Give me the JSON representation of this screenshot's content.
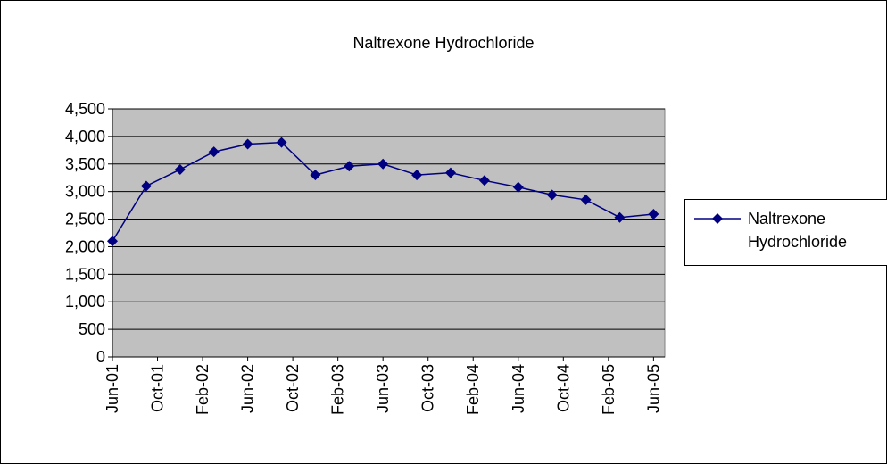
{
  "chart_data": {
    "type": "line",
    "title": "Naltrexone Hydrochloride",
    "x": [
      "2001-06",
      "2001-09",
      "2001-12",
      "2002-03",
      "2002-06",
      "2002-09",
      "2002-12",
      "2003-03",
      "2003-06",
      "2003-09",
      "2003-12",
      "2004-03",
      "2004-06",
      "2004-09",
      "2004-12",
      "2005-03",
      "2005-06"
    ],
    "series": [
      {
        "name": "Naltrexone Hydrochloride",
        "color": "#000080",
        "values": [
          2100,
          3100,
          3400,
          3720,
          3860,
          3890,
          3300,
          3460,
          3500,
          3300,
          3340,
          3200,
          3080,
          2940,
          2850,
          2530,
          2590
        ]
      }
    ],
    "xlim": [
      "2001-06",
      "2005-07"
    ],
    "xticks": [
      {
        "value": "2001-06",
        "label": "Jun-01"
      },
      {
        "value": "2001-10",
        "label": "Oct-01"
      },
      {
        "value": "2002-02",
        "label": "Feb-02"
      },
      {
        "value": "2002-06",
        "label": "Jun-02"
      },
      {
        "value": "2002-10",
        "label": "Oct-02"
      },
      {
        "value": "2003-02",
        "label": "Feb-03"
      },
      {
        "value": "2003-06",
        "label": "Jun-03"
      },
      {
        "value": "2003-10",
        "label": "Oct-03"
      },
      {
        "value": "2004-02",
        "label": "Feb-04"
      },
      {
        "value": "2004-06",
        "label": "Jun-04"
      },
      {
        "value": "2004-10",
        "label": "Oct-04"
      },
      {
        "value": "2005-02",
        "label": "Feb-05"
      },
      {
        "value": "2005-06",
        "label": "Jun-05"
      }
    ],
    "ylim": [
      0,
      4500
    ],
    "yticks": [
      0,
      500,
      {
        "value": 1000,
        "label": "1,000"
      },
      {
        "value": 1500,
        "label": "1,500"
      },
      {
        "value": 2000,
        "label": "2,000"
      },
      {
        "value": 2500,
        "label": "2,500"
      },
      {
        "value": 3000,
        "label": "3,000"
      },
      {
        "value": 3500,
        "label": "3,500"
      },
      {
        "value": 4000,
        "label": "4,000"
      },
      {
        "value": 4500,
        "label": "4,500"
      }
    ],
    "grid": true,
    "plot_background": "#c0c0c0",
    "legend": "right"
  }
}
